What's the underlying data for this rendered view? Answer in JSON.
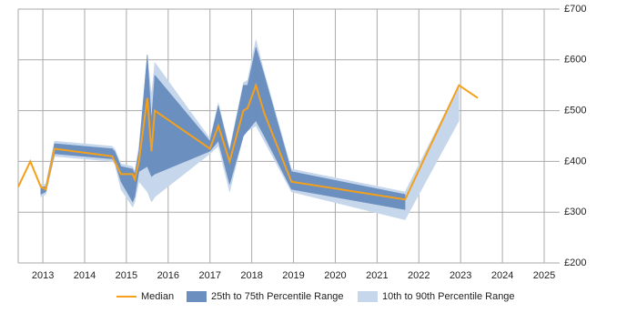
{
  "chart_data": {
    "type": "line-range",
    "x": [
      2012.41,
      2012.7,
      2012.95,
      2013.07,
      2013.28,
      2014.66,
      2014.72,
      2014.87,
      2015.15,
      2015.2,
      2015.3,
      2015.5,
      2015.6,
      2015.68,
      2017.0,
      2017.2,
      2017.47,
      2017.8,
      2017.9,
      2018.1,
      2018.3,
      2018.95,
      2021.67,
      2022.96,
      2023.41
    ],
    "series": [
      {
        "name": "10th to 90th Percentile Range",
        "color": "#c6d7ec",
        "low": [
          null,
          null,
          330,
          335,
          410,
          400,
          395,
          345,
          310,
          320,
          360,
          340,
          320,
          330,
          415,
          430,
          340,
          450,
          460,
          470,
          440,
          340,
          285,
          480,
          null
        ],
        "high": [
          null,
          null,
          355,
          355,
          440,
          430,
          425,
          395,
          390,
          380,
          430,
          610,
          530,
          595,
          445,
          515,
          425,
          555,
          560,
          640,
          575,
          385,
          340,
          550,
          null
        ]
      },
      {
        "name": "25th to 75th Percentile Range",
        "color": "#6b8fbf",
        "low": [
          null,
          null,
          335,
          340,
          415,
          405,
          400,
          360,
          320,
          330,
          380,
          390,
          370,
          375,
          420,
          440,
          355,
          450,
          460,
          480,
          450,
          345,
          305,
          null,
          null
        ],
        "high": [
          null,
          null,
          350,
          350,
          435,
          425,
          420,
          390,
          385,
          375,
          420,
          610,
          480,
          570,
          440,
          510,
          420,
          550,
          550,
          625,
          570,
          380,
          335,
          null,
          null
        ]
      },
      {
        "name": "Median",
        "color": "#f5a01a",
        "values": [
          350,
          400,
          350,
          345,
          425,
          410,
          400,
          375,
          375,
          365,
          400,
          525,
          420,
          500,
          425,
          470,
          400,
          500,
          505,
          550,
          495,
          360,
          325,
          550,
          525
        ]
      }
    ],
    "xlim": [
      2012.41,
      2025.37
    ],
    "xticks": [
      2013,
      2014,
      2015,
      2016,
      2017,
      2018,
      2019,
      2020,
      2021,
      2022,
      2023,
      2024,
      2025
    ],
    "ylim": [
      200,
      700
    ],
    "yticks": [
      {
        "value": 200,
        "label": "£200"
      },
      {
        "value": 300,
        "label": "£300"
      },
      {
        "value": 400,
        "label": "£400"
      },
      {
        "value": 500,
        "label": "£500"
      },
      {
        "value": 600,
        "label": "£600"
      },
      {
        "value": 700,
        "label": "£700"
      }
    ],
    "grid": true
  }
}
